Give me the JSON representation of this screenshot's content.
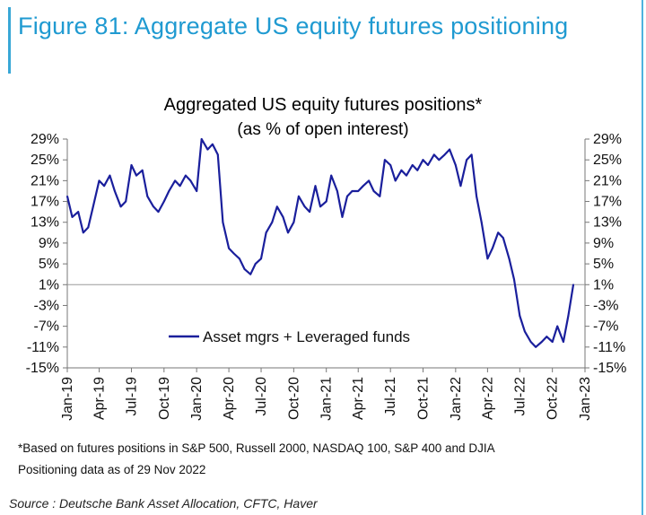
{
  "figure": {
    "title": "Figure 81: Aggregate US equity futures positioning"
  },
  "chart_data": {
    "type": "line",
    "title": "Aggregated US equity futures positions*",
    "subtitle": "(as % of open interest)",
    "ylim": [
      -15,
      29
    ],
    "y_ticks": [
      "29%",
      "25%",
      "21%",
      "17%",
      "13%",
      "9%",
      "5%",
      "1%",
      "-3%",
      "-7%",
      "-11%",
      "-15%"
    ],
    "x_ticks": [
      "Jan-19",
      "Apr-19",
      "Jul-19",
      "Oct-19",
      "Jan-20",
      "Apr-20",
      "Jul-20",
      "Oct-20",
      "Jan-21",
      "Apr-21",
      "Jul-21",
      "Oct-21",
      "Jan-22",
      "Apr-22",
      "Jul-22",
      "Oct-22",
      "Jan-23"
    ],
    "legend_position": "middle",
    "series": [
      {
        "name": "Asset mgrs + Leveraged funds",
        "color": "#1a1f9c",
        "x": [
          "2019-01-01",
          "2019-01-15",
          "2019-02-01",
          "2019-02-15",
          "2019-03-01",
          "2019-03-15",
          "2019-04-01",
          "2019-04-15",
          "2019-05-01",
          "2019-05-15",
          "2019-06-01",
          "2019-06-15",
          "2019-07-01",
          "2019-07-15",
          "2019-08-01",
          "2019-08-15",
          "2019-09-01",
          "2019-09-15",
          "2019-10-01",
          "2019-10-15",
          "2019-11-01",
          "2019-11-15",
          "2019-12-01",
          "2019-12-15",
          "2020-01-01",
          "2020-01-15",
          "2020-02-01",
          "2020-02-15",
          "2020-03-01",
          "2020-03-15",
          "2020-04-01",
          "2020-04-15",
          "2020-05-01",
          "2020-05-15",
          "2020-06-01",
          "2020-06-15",
          "2020-07-01",
          "2020-07-15",
          "2020-08-01",
          "2020-08-15",
          "2020-09-01",
          "2020-09-15",
          "2020-10-01",
          "2020-10-15",
          "2020-11-01",
          "2020-11-15",
          "2020-12-01",
          "2020-12-15",
          "2021-01-01",
          "2021-01-15",
          "2021-02-01",
          "2021-02-15",
          "2021-03-01",
          "2021-03-15",
          "2021-04-01",
          "2021-04-15",
          "2021-05-01",
          "2021-05-15",
          "2021-06-01",
          "2021-06-15",
          "2021-07-01",
          "2021-07-15",
          "2021-08-01",
          "2021-08-15",
          "2021-09-01",
          "2021-09-15",
          "2021-10-01",
          "2021-10-15",
          "2021-11-01",
          "2021-11-15",
          "2021-12-01",
          "2021-12-15",
          "2022-01-01",
          "2022-01-15",
          "2022-02-01",
          "2022-02-15",
          "2022-03-01",
          "2022-03-15",
          "2022-04-01",
          "2022-04-15",
          "2022-05-01",
          "2022-05-15",
          "2022-06-01",
          "2022-06-15",
          "2022-07-01",
          "2022-07-15",
          "2022-08-01",
          "2022-08-15",
          "2022-09-01",
          "2022-09-15",
          "2022-10-01",
          "2022-10-15",
          "2022-11-01",
          "2022-11-15",
          "2022-11-29"
        ],
        "y": [
          18,
          14,
          15,
          11,
          12,
          16,
          21,
          20,
          22,
          19,
          16,
          17,
          24,
          22,
          23,
          18,
          16,
          15,
          17,
          19,
          21,
          20,
          22,
          21,
          19,
          29,
          27,
          28,
          26,
          13,
          8,
          7,
          6,
          4,
          3,
          5,
          6,
          11,
          13,
          16,
          14,
          11,
          13,
          18,
          16,
          15,
          20,
          16,
          17,
          22,
          19,
          14,
          18,
          19,
          19,
          20,
          21,
          19,
          18,
          25,
          24,
          21,
          23,
          22,
          24,
          23,
          25,
          24,
          26,
          25,
          26,
          27,
          24,
          20,
          25,
          26,
          18,
          13,
          6,
          8,
          11,
          10,
          6,
          2,
          -5,
          -8,
          -10,
          -11,
          -10,
          -9,
          -10,
          -7,
          -10,
          -5,
          1
        ]
      }
    ]
  },
  "footnotes": [
    "*Based on futures positions in S&P 500, Russell 2000, NASDAQ 100, S&P 400 and DJIA",
    "Positioning data as of 29 Nov 2022"
  ],
  "source": "Source : Deutsche Bank Asset Allocation, CFTC, Haver"
}
